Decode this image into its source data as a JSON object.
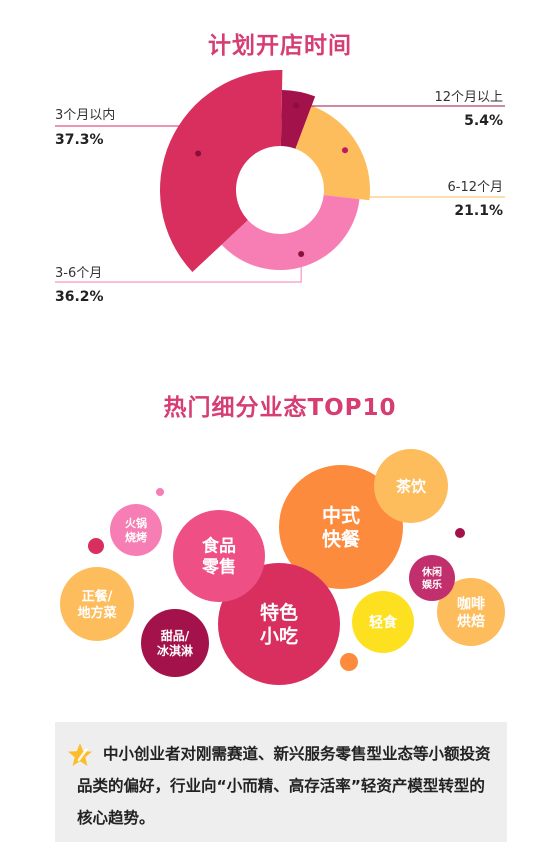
{
  "chart_data": [
    {
      "type": "pie",
      "title": "计划开店时间",
      "slices": [
        {
          "label": "12个月以上",
          "value": 5.4,
          "value_label": "5.4%",
          "color": "#a3124a"
        },
        {
          "label": "6-12个月",
          "value": 21.1,
          "value_label": "21.1%",
          "color": "#fdbd5c"
        },
        {
          "label": "3-6个月",
          "value": 36.2,
          "value_label": "36.2%",
          "color": "#f77eb4"
        },
        {
          "label": "3个月以内",
          "value": 37.3,
          "value_label": "37.3%",
          "color": "#d92f5f"
        }
      ]
    },
    {
      "type": "bubble",
      "title": "热门细分业态TOP10",
      "bubbles": [
        {
          "label": [
            "中式",
            "快餐"
          ],
          "color": "#fc8b3e"
        },
        {
          "label": [
            "特色",
            "小吃"
          ],
          "color": "#d92f5f"
        },
        {
          "label": [
            "食品",
            "零售"
          ],
          "color": "#ee4f85"
        },
        {
          "label": [
            "茶饮"
          ],
          "color": "#fdbd5c"
        },
        {
          "label": [
            "正餐/",
            "地方菜"
          ],
          "color": "#fdbd5c"
        },
        {
          "label": [
            "咖啡",
            "烘焙"
          ],
          "color": "#fdbd5c"
        },
        {
          "label": [
            "轻食"
          ],
          "color": "#fde120"
        },
        {
          "label": [
            "甜品/",
            "冰淇淋"
          ],
          "color": "#a3124a"
        },
        {
          "label": [
            "火锅",
            "烧烤"
          ],
          "color": "#f77eb4"
        },
        {
          "label": [
            "休闲",
            "娱乐"
          ],
          "color": "#c22f6d"
        }
      ],
      "decor_dots": [
        "#d92f5f",
        "#f77eb4",
        "#a3124a",
        "#fc8b3e"
      ]
    }
  ],
  "note": {
    "text": "中小创业者对刚需赛道、新兴服务零售型业态等小额投资品类的偏好，行业向“小而精、高存活率”轻资产模型转型的核心趋势。",
    "icon": "star-pen-icon",
    "icon_color": "#fdbd2a"
  }
}
